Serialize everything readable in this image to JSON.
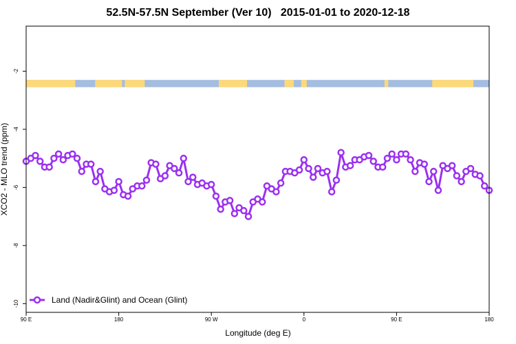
{
  "chart_data": {
    "type": "line",
    "title": "52.5N-57.5N September (Ver 10)   2015-01-01 to 2020-12-18",
    "xlabel": "Longitude (deg E)",
    "ylabel": "XCO2 - MLO trend (ppm)",
    "xlim": [
      0,
      100
    ],
    "ylim": [
      -10.3,
      -0.45
    ],
    "x_ticks": [
      {
        "pos": 0,
        "label": "90 E"
      },
      {
        "pos": 20,
        "label": "180"
      },
      {
        "pos": 40,
        "label": "90 W"
      },
      {
        "pos": 60,
        "label": "0"
      },
      {
        "pos": 80,
        "label": "90 E"
      },
      {
        "pos": 100,
        "label": "180"
      }
    ],
    "y_ticks": [
      -2,
      -4,
      -6,
      -8,
      -10
    ],
    "legend": {
      "position": "bottom-left",
      "label": "Land (Nadir&Glint) and Ocean (Glint)"
    },
    "colors": {
      "series": "#9b30f0",
      "land": "#fed97a",
      "ocean": "#a4bde0"
    },
    "surface_band": {
      "y_range": [
        -2.55,
        -2.3
      ],
      "land_segments": [
        [
          0,
          10.6
        ],
        [
          14.9,
          20.7
        ],
        [
          21.3,
          25.6
        ],
        [
          41.6,
          47.7
        ],
        [
          55.8,
          57.8
        ],
        [
          59.4,
          60.6
        ],
        [
          77.4,
          78.2
        ],
        [
          87.7,
          96.6
        ]
      ]
    },
    "series": [
      {
        "name": "Land (Nadir&Glint) and Ocean (Glint)",
        "x": [
          0,
          1,
          2,
          3,
          4,
          5,
          6,
          7,
          8,
          9,
          10,
          11,
          12,
          13,
          14,
          15,
          16,
          17,
          18,
          19,
          20,
          21,
          22,
          23,
          24,
          25,
          26,
          27,
          28,
          29,
          30,
          31,
          32,
          33,
          34,
          35,
          36,
          37,
          38,
          39,
          40,
          41,
          42,
          43,
          44,
          45,
          46,
          47,
          48,
          49,
          50,
          51,
          52,
          53,
          54,
          55,
          56,
          57,
          58,
          59,
          60,
          61,
          62,
          63,
          64,
          65,
          66,
          67,
          68,
          69,
          70,
          71,
          72,
          73,
          74,
          75,
          76,
          77,
          78,
          79,
          80,
          81,
          82,
          83,
          84,
          85,
          86,
          87,
          88,
          89,
          90,
          91,
          92,
          93,
          94,
          95,
          96,
          97,
          98,
          99,
          100
        ],
        "y": [
          -5.1,
          -5.0,
          -4.9,
          -5.1,
          -5.3,
          -5.3,
          -5.0,
          -4.85,
          -5.05,
          -4.9,
          -4.85,
          -5.0,
          -5.45,
          -5.2,
          -5.2,
          -5.8,
          -5.45,
          -6.05,
          -6.15,
          -6.1,
          -5.8,
          -6.25,
          -6.3,
          -6.05,
          -5.95,
          -5.95,
          -5.75,
          -5.15,
          -5.2,
          -5.7,
          -5.6,
          -5.25,
          -5.35,
          -5.5,
          -5.0,
          -5.8,
          -5.65,
          -5.9,
          -5.85,
          -5.95,
          -5.9,
          -6.3,
          -6.75,
          -6.5,
          -6.45,
          -6.9,
          -6.7,
          -6.8,
          -7.0,
          -6.5,
          -6.4,
          -6.5,
          -5.95,
          -6.05,
          -6.15,
          -5.85,
          -5.45,
          -5.45,
          -5.5,
          -5.4,
          -5.05,
          -5.35,
          -5.65,
          -5.35,
          -5.5,
          -5.45,
          -6.15,
          -5.75,
          -4.8,
          -5.3,
          -5.25,
          -5.05,
          -5.05,
          -4.95,
          -4.9,
          -5.1,
          -5.3,
          -5.3,
          -5.0,
          -4.85,
          -5.05,
          -4.85,
          -4.85,
          -5.05,
          -5.45,
          -5.15,
          -5.2,
          -5.8,
          -5.45,
          -6.1,
          -5.25,
          -5.35,
          -5.25,
          -5.6,
          -5.8,
          -5.45,
          -5.35,
          -5.55,
          -5.6,
          -5.95,
          -6.1
        ]
      }
    ]
  }
}
